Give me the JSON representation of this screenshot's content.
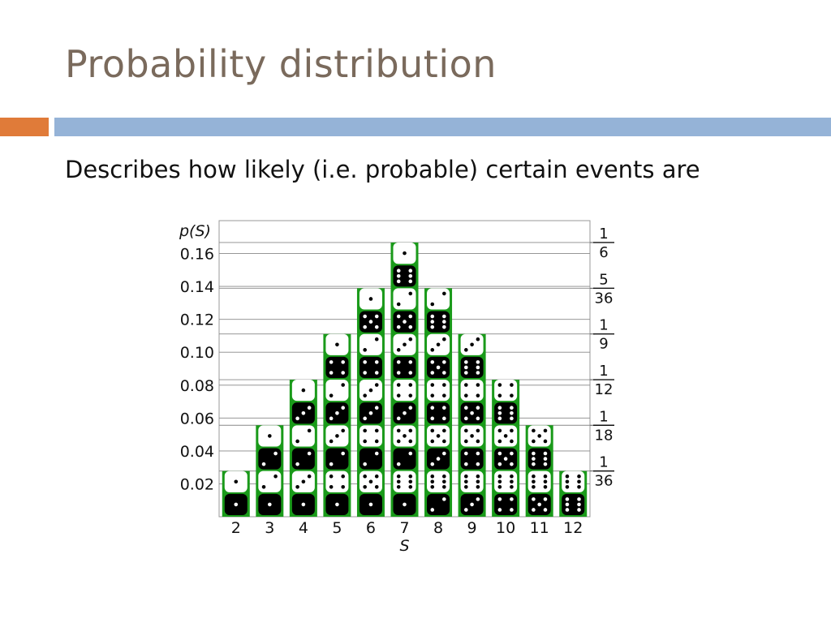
{
  "slide": {
    "title": "Probability distribution",
    "subtitle": "Describes how likely (i.e. probable) certain events are"
  },
  "chart_data": {
    "type": "bar",
    "title": "",
    "xlabel": "S",
    "ylabel": "p(S)",
    "categories": [
      "2",
      "3",
      "4",
      "5",
      "6",
      "7",
      "8",
      "9",
      "10",
      "11",
      "12"
    ],
    "counts": [
      1,
      2,
      3,
      4,
      5,
      6,
      5,
      4,
      3,
      2,
      1
    ],
    "values": [
      0.0278,
      0.0556,
      0.0833,
      0.1111,
      0.1389,
      0.1667,
      0.1389,
      0.1111,
      0.0833,
      0.0556,
      0.0278
    ],
    "ylim": [
      0,
      0.18
    ],
    "yticks": [
      "0.02",
      "0.04",
      "0.06",
      "0.08",
      "0.10",
      "0.12",
      "0.14",
      "0.16"
    ],
    "right_axis": [
      {
        "num": "1",
        "den": "6",
        "value": 0.1667
      },
      {
        "num": "5",
        "den": "36",
        "value": 0.1389
      },
      {
        "num": "1",
        "den": "9",
        "value": 0.1111
      },
      {
        "num": "1",
        "den": "12",
        "value": 0.0833
      },
      {
        "num": "1",
        "den": "18",
        "value": 0.0556
      },
      {
        "num": "1",
        "den": "36",
        "value": 0.0278
      }
    ],
    "grid": true,
    "bar_color": "#1a9a1a",
    "die_colors": {
      "white": "#ffffff",
      "black": "#000000"
    }
  }
}
